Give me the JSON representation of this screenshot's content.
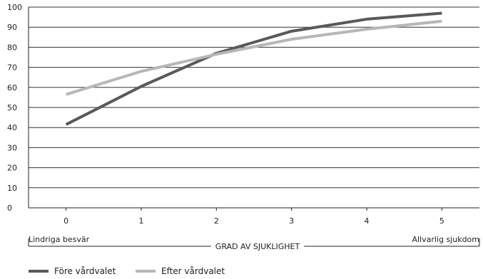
{
  "chart_data": {
    "type": "line",
    "title": "",
    "x": [
      0,
      1,
      2,
      3,
      4,
      5
    ],
    "xtick_labels": [
      "0",
      "1",
      "2",
      "3",
      "4",
      "5"
    ],
    "xlabel": "GRAD AV SJUKLIGHET",
    "x_left_label": "Lindriga besvär",
    "x_right_label": "Allvarlig sjukdom",
    "ylabel": "",
    "ylim": [
      0,
      100
    ],
    "yticks": [
      0,
      10,
      20,
      30,
      40,
      50,
      60,
      70,
      80,
      90,
      100
    ],
    "grid": "horizontal",
    "legend_position": "bottom-left",
    "series": [
      {
        "name": "Före vårdvalet",
        "color": "#595959",
        "values": [
          41.5,
          60.5,
          77,
          88,
          94,
          97
        ]
      },
      {
        "name": "Efter vårdvalet",
        "color": "#b7b7b7",
        "values": [
          56.5,
          68,
          76.5,
          84,
          89,
          93
        ]
      }
    ]
  }
}
